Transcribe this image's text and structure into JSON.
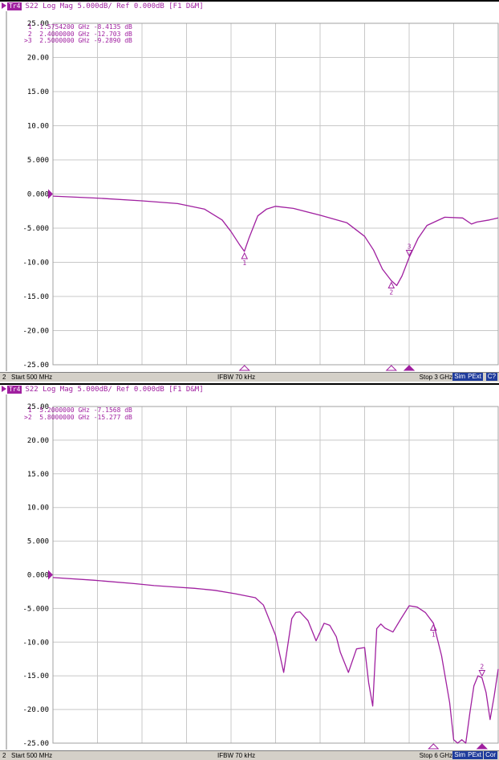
{
  "colors": {
    "trace": "#a020a0",
    "grid": "#c8c8c8",
    "statusbar": "#d4d0c8",
    "badge": "#1f3c9c"
  },
  "panels": [
    {
      "header": {
        "tr_label": "Tr4",
        "text": "S22 Log Mag 5.000dB/ Ref 0.000dB [F1 D&M]"
      },
      "y_ticks": [
        "25.00",
        "20.00",
        "15.00",
        "10.00",
        "5.000",
        "0.000",
        "-5.000",
        "-10.00",
        "-15.00",
        "-20.00",
        "-25.00"
      ],
      "markers_table": [
        {
          "prefix": " 1",
          "freq": "1.5754200 GHz",
          "value": "-8.4135 dB"
        },
        {
          "prefix": " 2",
          "freq": "2.4000000 GHz",
          "value": "-12.703 dB"
        },
        {
          "prefix": ">3",
          "freq": "2.5000000 GHz",
          "value": "-9.2890 dB"
        }
      ],
      "marker_labels": [
        "1",
        "2",
        "3"
      ],
      "status": {
        "channel": "2",
        "start": "Start 500 MHz",
        "ifbw": "IFBW 70 kHz",
        "stop": "Stop 3 GHz",
        "badges": [
          "Sim",
          "PExt",
          "C?"
        ]
      }
    },
    {
      "header": {
        "tr_label": "Tr4",
        "text": "S22 Log Mag 5.000dB/ Ref 0.000dB [F1 D&M]"
      },
      "y_ticks": [
        "25.00",
        "20.00",
        "15.00",
        "10.00",
        "5.000",
        "0.000",
        "-5.000",
        "-10.00",
        "-15.00",
        "-20.00",
        "-25.00"
      ],
      "markers_table": [
        {
          "prefix": " 1",
          "freq": "5.2000000 GHz",
          "value": "-7.1568 dB"
        },
        {
          "prefix": ">2",
          "freq": "5.8000000 GHz",
          "value": "-15.277 dB"
        }
      ],
      "marker_labels": [
        "1",
        "2"
      ],
      "status": {
        "channel": "2",
        "start": "Start 500 MHz",
        "ifbw": "IFBW 70 kHz",
        "stop": "Stop 6 GHz",
        "badges": [
          "Sim",
          "PExt",
          "Cor"
        ]
      }
    }
  ],
  "chart_data": [
    {
      "type": "line",
      "xlabel": "",
      "ylabel": "",
      "xlim": [
        0.5,
        3.0
      ],
      "ylim": [
        -25,
        25
      ],
      "series": [
        {
          "x": [
            0.5,
            0.75,
            1.0,
            1.2,
            1.35,
            1.45,
            1.5,
            1.55,
            1.575,
            1.6,
            1.65,
            1.7,
            1.75,
            1.85,
            2.0,
            2.15,
            2.25,
            2.3,
            2.35,
            2.4,
            2.43,
            2.46,
            2.5,
            2.55,
            2.6,
            2.7,
            2.8,
            2.85,
            2.88,
            2.95,
            3.0
          ],
          "y": [
            -0.3,
            -0.6,
            -1.0,
            -1.4,
            -2.2,
            -3.8,
            -5.5,
            -7.5,
            -8.4,
            -6.5,
            -3.2,
            -2.2,
            -1.8,
            -2.1,
            -3.1,
            -4.2,
            -6.2,
            -8.2,
            -11.0,
            -12.7,
            -13.4,
            -12.0,
            -9.3,
            -6.5,
            -4.6,
            -3.4,
            -3.5,
            -4.4,
            -4.1,
            -3.8,
            -3.5
          ]
        }
      ],
      "markers": [
        {
          "n": 1,
          "x": 1.57542,
          "y": -8.4135
        },
        {
          "n": 2,
          "x": 2.4,
          "y": -12.703
        },
        {
          "n": 3,
          "x": 2.5,
          "y": -9.289
        }
      ]
    },
    {
      "type": "line",
      "xlabel": "",
      "ylabel": "",
      "xlim": [
        0.5,
        6.0
      ],
      "ylim": [
        -25,
        25
      ],
      "series": [
        {
          "x": [
            0.5,
            1.0,
            1.5,
            1.75,
            2.0,
            2.25,
            2.5,
            2.75,
            3.0,
            3.1,
            3.25,
            3.35,
            3.45,
            3.5,
            3.55,
            3.65,
            3.75,
            3.85,
            3.92,
            4.0,
            4.05,
            4.15,
            4.25,
            4.35,
            4.4,
            4.45,
            4.5,
            4.55,
            4.6,
            4.7,
            4.8,
            4.9,
            5.0,
            5.1,
            5.2,
            5.3,
            5.4,
            5.45,
            5.5,
            5.55,
            5.6,
            5.65,
            5.7,
            5.75,
            5.8,
            5.85,
            5.9,
            5.95,
            6.0
          ],
          "y": [
            -0.4,
            -0.8,
            -1.3,
            -1.6,
            -1.8,
            -2.0,
            -2.3,
            -2.8,
            -3.4,
            -4.5,
            -9.0,
            -14.5,
            -6.5,
            -5.6,
            -5.5,
            -6.8,
            -9.8,
            -7.2,
            -7.5,
            -9.2,
            -11.5,
            -14.5,
            -11.0,
            -10.8,
            -16.0,
            -19.5,
            -8.0,
            -7.3,
            -7.9,
            -8.5,
            -6.5,
            -4.6,
            -4.8,
            -5.6,
            -7.2,
            -12.0,
            -19.0,
            -24.5,
            -25.0,
            -24.5,
            -25.0,
            -20.5,
            -16.5,
            -15.0,
            -15.3,
            -17.5,
            -21.5,
            -18.0,
            -14.0
          ]
        }
      ],
      "markers": [
        {
          "n": 1,
          "x": 5.2,
          "y": -7.1568
        },
        {
          "n": 2,
          "x": 5.8,
          "y": -15.277
        }
      ]
    }
  ]
}
